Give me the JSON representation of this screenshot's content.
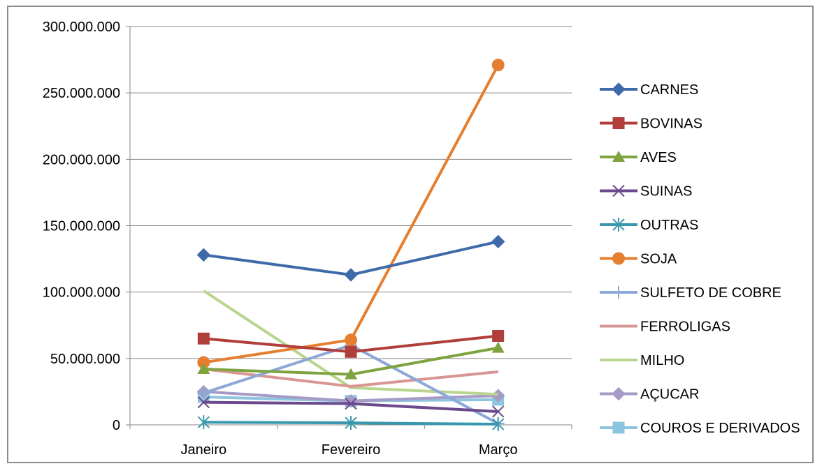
{
  "chart_data": {
    "type": "line",
    "categories": [
      "Janeiro",
      "Fevereiro",
      "Março"
    ],
    "y_ticks": [
      "0",
      "50.000.000",
      "100.000.000",
      "150.000.000",
      "200.000.000",
      "250.000.000",
      "300.000.000"
    ],
    "ylim": [
      0,
      300000000
    ],
    "grid": "horizontal",
    "legend_position": "right",
    "series": [
      {
        "name": "CARNES",
        "color": "#3E6AAA",
        "marker": "diamond",
        "values": [
          128000000,
          113000000,
          138000000
        ]
      },
      {
        "name": "BOVINAS",
        "color": "#B03E3B",
        "marker": "square",
        "values": [
          65000000,
          55000000,
          67000000
        ]
      },
      {
        "name": "AVES",
        "color": "#7FA33F",
        "marker": "triangle",
        "values": [
          42000000,
          38000000,
          58000000
        ]
      },
      {
        "name": "SUINAS",
        "color": "#6A4A8C",
        "marker": "x",
        "values": [
          17000000,
          16000000,
          10000000
        ]
      },
      {
        "name": "OUTRAS",
        "color": "#3A98AE",
        "marker": "star",
        "values": [
          2000000,
          1500000,
          500000
        ]
      },
      {
        "name": "SOJA",
        "color": "#E57F2F",
        "marker": "circle",
        "values": [
          47000000,
          64000000,
          271000000
        ]
      },
      {
        "name": "SULFETO DE COBRE",
        "color": "#8CA8D8",
        "marker": "plus",
        "values": [
          24000000,
          60000000,
          1000000
        ]
      },
      {
        "name": "FERROLIGAS",
        "color": "#D99592",
        "marker": "none",
        "values": [
          42000000,
          29000000,
          40000000
        ]
      },
      {
        "name": "MILHO",
        "color": "#B8D48E",
        "marker": "none",
        "values": [
          101000000,
          28000000,
          23000000
        ]
      },
      {
        "name": "AÇUCAR",
        "color": "#A69AC6",
        "marker": "diamond",
        "values": [
          25000000,
          18000000,
          22000000
        ]
      },
      {
        "name": "COUROS E DERIVADOS",
        "color": "#8EC5DE",
        "marker": "square",
        "values": [
          21000000,
          18000000,
          19000000
        ]
      }
    ]
  }
}
